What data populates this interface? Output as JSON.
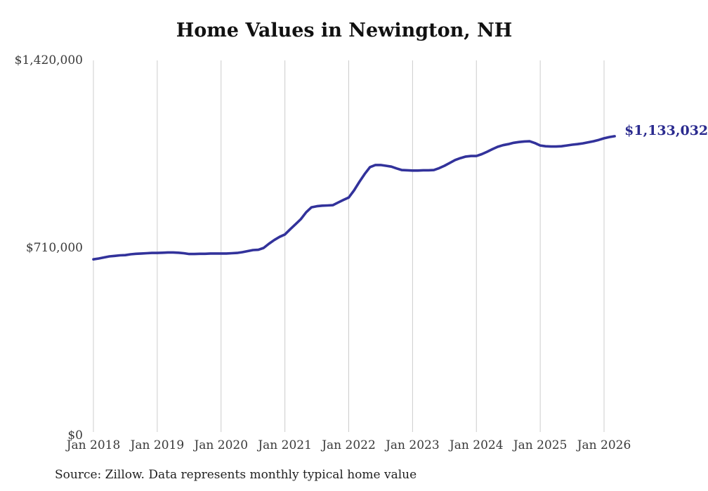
{
  "title": "Home Values in Newington, NH",
  "source_note": "Source: Zillow. Data represents monthly typical home value",
  "colors": {
    "line": "#32329b",
    "end_label": "#2b2b8f",
    "gridline": "#cccccc",
    "tick_label": "#3a3a3a",
    "title": "#111111",
    "source": "#1f1f1f",
    "background": "#ffffff"
  },
  "chart_data": {
    "type": "line",
    "title": "Home Values in Newington, NH",
    "xlabel": "",
    "ylabel": "",
    "ylim": [
      0,
      1420000
    ],
    "grid": "vertical-only",
    "legend": "none",
    "x_ticks": [
      "Jan 2018",
      "Jan 2019",
      "Jan 2020",
      "Jan 2021",
      "Jan 2022",
      "Jan 2023",
      "Jan 2024",
      "Jan 2025",
      "Jan 2026"
    ],
    "y_ticks": [
      {
        "label": "$1,420,000",
        "value": 1420000
      },
      {
        "label": "$710,000",
        "value": 710000
      },
      {
        "label": "$0",
        "value": 0
      }
    ],
    "end_label": "$1,133,032",
    "final_value": 1133032,
    "series": [
      {
        "name": "Typical home value",
        "months": [
          "2018-01",
          "2018-02",
          "2018-03",
          "2018-04",
          "2018-05",
          "2018-06",
          "2018-07",
          "2018-08",
          "2018-09",
          "2018-10",
          "2018-11",
          "2018-12",
          "2019-01",
          "2019-02",
          "2019-03",
          "2019-04",
          "2019-05",
          "2019-06",
          "2019-07",
          "2019-08",
          "2019-09",
          "2019-10",
          "2019-11",
          "2019-12",
          "2020-01",
          "2020-02",
          "2020-03",
          "2020-04",
          "2020-05",
          "2020-06",
          "2020-07",
          "2020-08",
          "2020-09",
          "2020-10",
          "2020-11",
          "2020-12",
          "2021-01",
          "2021-02",
          "2021-03",
          "2021-04",
          "2021-05",
          "2021-06",
          "2021-07",
          "2021-08",
          "2021-09",
          "2021-10",
          "2021-11",
          "2021-12",
          "2022-01",
          "2022-02",
          "2022-03",
          "2022-04",
          "2022-05",
          "2022-06",
          "2022-07",
          "2022-08",
          "2022-09",
          "2022-10",
          "2022-11",
          "2022-12",
          "2023-01",
          "2023-02",
          "2023-03",
          "2023-04",
          "2023-05",
          "2023-06",
          "2023-07",
          "2023-08",
          "2023-09",
          "2023-10",
          "2023-11",
          "2023-12",
          "2024-01",
          "2024-02",
          "2024-03",
          "2024-04",
          "2024-05",
          "2024-06",
          "2024-07",
          "2024-08",
          "2024-09",
          "2024-10",
          "2024-11",
          "2024-12",
          "2025-01",
          "2025-02",
          "2025-03",
          "2025-04",
          "2025-05",
          "2025-06",
          "2025-07",
          "2025-08",
          "2025-09",
          "2025-10",
          "2025-11",
          "2025-12",
          "2026-01",
          "2026-02",
          "2026-03"
        ],
        "values_usd": [
          667000,
          670000,
          674000,
          678000,
          680000,
          682000,
          683000,
          686000,
          688000,
          689000,
          690000,
          691000,
          691000,
          692000,
          693000,
          693000,
          692000,
          690000,
          687000,
          687000,
          688000,
          688000,
          689000,
          689000,
          689000,
          689000,
          690000,
          691000,
          694000,
          698000,
          702000,
          703000,
          710000,
          726000,
          740000,
          752000,
          761000,
          781000,
          800000,
          819000,
          845000,
          864000,
          868000,
          870000,
          871000,
          872000,
          882000,
          892000,
          901000,
          928000,
          960000,
          990000,
          1016000,
          1024000,
          1024000,
          1021000,
          1018000,
          1011000,
          1005000,
          1004000,
          1003000,
          1003000,
          1004000,
          1004000,
          1005000,
          1012000,
          1021000,
          1032000,
          1043000,
          1050000,
          1056000,
          1058000,
          1058000,
          1065000,
          1074000,
          1084000,
          1093000,
          1099000,
          1103000,
          1108000,
          1111000,
          1113000,
          1114000,
          1107000,
          1098000,
          1095000,
          1094000,
          1094000,
          1095000,
          1098000,
          1101000,
          1103000,
          1106000,
          1110000,
          1114000,
          1119000,
          1125000,
          1130000,
          1133032
        ]
      }
    ]
  }
}
